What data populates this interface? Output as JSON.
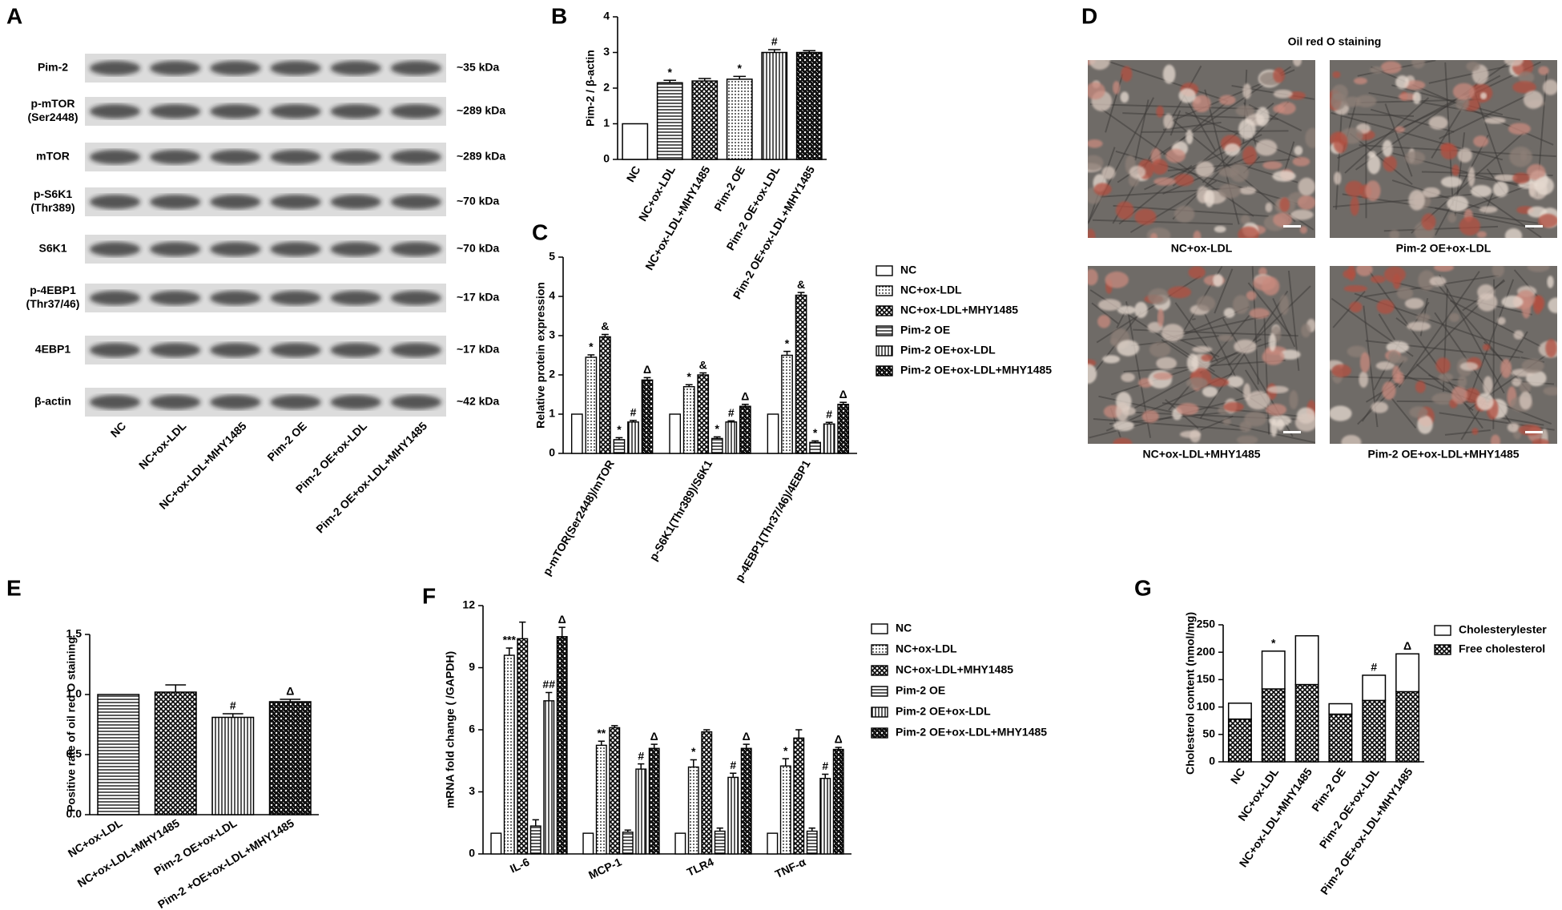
{
  "blot": {
    "label": "A",
    "rows": [
      {
        "name": [
          "Pim-2"
        ],
        "size": "~35 kDa"
      },
      {
        "name": [
          "p-mTOR",
          "(Ser2448)"
        ],
        "size": "~289 kDa"
      },
      {
        "name": [
          "mTOR"
        ],
        "size": "~289 kDa"
      },
      {
        "name": [
          "p-S6K1",
          "(Thr389)"
        ],
        "size": "~70 kDa"
      },
      {
        "name": [
          "S6K1"
        ],
        "size": "~70 kDa"
      },
      {
        "name": [
          "p-4EBP1",
          "(Thr37/46)"
        ],
        "size": "~17 kDa"
      },
      {
        "name": [
          "4EBP1"
        ],
        "size": "~17 kDa"
      },
      {
        "name": [
          "β-actin"
        ],
        "size": "~42 kDa"
      }
    ],
    "lanes": [
      "NC",
      "NC+ox-LDL",
      "NC+ox-LDL+MHY1485",
      "Pim-2 OE",
      "Pim-2 OE+ox-LDL",
      "Pim-2 OE+ox-LDL+MHY1485"
    ]
  },
  "micrographs": {
    "label": "D",
    "title": "Oil red O staining",
    "captions": [
      "NC+ox-LDL",
      "Pim-2 OE+ox-LDL",
      "NC+ox-LDL+MHY1485",
      "Pim-2 OE+ox-LDL+MHY1485"
    ]
  },
  "chart_data": [
    {
      "type": "bar",
      "label": "B",
      "y_label": "Pim-2 / β-actin",
      "categories": [
        "NC",
        "NC+ox-LDL",
        "NC+ox-LDL+MHY1485",
        "Pim-2 OE",
        "Pim-2 OE+ox-LDL",
        "Pim-2 OE+ox-LDL+MHY1485"
      ],
      "values": [
        1,
        2.15,
        2.2,
        2.25,
        3.0,
        3.0
      ],
      "errors": [
        null,
        0.07,
        0.07,
        0.08,
        0.08,
        0.05
      ],
      "annotations": [
        null,
        "*",
        null,
        "*",
        "#",
        null
      ],
      "patterns": [
        "white",
        "horizontal",
        "crosshatch",
        "dotted",
        "vertical",
        "checker"
      ],
      "ylim": [
        0,
        4
      ],
      "yticks": [
        0,
        1,
        2,
        3,
        4
      ]
    },
    {
      "type": "grouped_bar",
      "label": "C",
      "y_label": "Relative protein expression",
      "categories": [
        "p-mTOR(Ser2448)/mTOR",
        "p-S6K1(Thr389)/S6K1",
        "p-4EBP1(Thr37/46)/4EBP1"
      ],
      "series": [
        {
          "name": "NC",
          "pattern": "white",
          "values": [
            1,
            1,
            1
          ],
          "errors": [
            null,
            null,
            null
          ],
          "annotations": [
            null,
            null,
            null
          ]
        },
        {
          "name": "NC+ox-LDL",
          "pattern": "dotted",
          "values": [
            2.45,
            1.7,
            2.5
          ],
          "errors": [
            0.06,
            0.05,
            0.1
          ],
          "annotations": [
            "*",
            "*",
            "*"
          ]
        },
        {
          "name": "NC+ox-LDL+MHY1485",
          "pattern": "crosshatch",
          "values": [
            2.97,
            2.0,
            4.03
          ],
          "errors": [
            0.06,
            0.05,
            0.07
          ],
          "annotations": [
            "&",
            "&",
            "&"
          ]
        },
        {
          "name": "Pim-2 OE",
          "pattern": "horizontal",
          "values": [
            0.35,
            0.38,
            0.28
          ],
          "errors": [
            0.05,
            0.04,
            0.04
          ],
          "annotations": [
            "*",
            "*",
            "*"
          ]
        },
        {
          "name": "Pim-2 OE+ox-LDL",
          "pattern": "vertical",
          "values": [
            0.8,
            0.8,
            0.75
          ],
          "errors": [
            0.04,
            0.03,
            0.04
          ],
          "annotations": [
            "#",
            "#",
            "#"
          ]
        },
        {
          "name": "Pim-2 OE+ox-LDL+MHY1485",
          "pattern": "checker",
          "values": [
            1.87,
            1.2,
            1.25
          ],
          "errors": [
            0.06,
            0.05,
            0.05
          ],
          "annotations": [
            "Δ",
            "Δ",
            "Δ"
          ]
        }
      ],
      "ylim": [
        0,
        5
      ],
      "yticks": [
        0,
        1,
        2,
        3,
        4,
        5
      ]
    },
    {
      "type": "bar",
      "label": "E",
      "y_label": "Positive rate of oil red O staining",
      "categories": [
        "NC+ox-LDL",
        "NC+ox-LDL+MHY1485",
        "Pim-2 OE+ox-LDL",
        "Pim-2 +OE+ox-LDL+MHY1485"
      ],
      "values": [
        1.0,
        1.02,
        0.81,
        0.94
      ],
      "errors": [
        null,
        0.06,
        0.03,
        0.02
      ],
      "annotations": [
        null,
        null,
        "#",
        "Δ"
      ],
      "patterns": [
        "horizontal",
        "crosshatch",
        "vertical",
        "checker"
      ],
      "ylim": [
        0,
        1.5
      ],
      "yticks": [
        {
          "value": 0,
          "label": "0.0"
        },
        {
          "value": 0.5,
          "label": "0.5"
        },
        {
          "value": 1,
          "label": "1.0"
        },
        {
          "value": 1.5,
          "label": "1.5"
        }
      ]
    },
    {
      "type": "grouped_bar",
      "label": "F",
      "y_label": "mRNA fold change ( /GAPDH)",
      "categories": [
        "IL-6",
        "MCP-1",
        "TLR4",
        "TNF-α"
      ],
      "series": [
        {
          "name": "NC",
          "pattern": "white",
          "values": [
            1,
            1,
            1,
            1
          ],
          "errors": [
            null,
            null,
            null,
            null
          ],
          "annotations": [
            null,
            null,
            null,
            null
          ]
        },
        {
          "name": "NC+ox-LDL",
          "pattern": "dotted",
          "values": [
            9.6,
            5.25,
            4.2,
            4.25
          ],
          "errors": [
            0.35,
            0.2,
            0.35,
            0.35
          ],
          "annotations": [
            "***",
            "**",
            "*",
            "*"
          ]
        },
        {
          "name": "NC+ox-LDL+MHY1485",
          "pattern": "crosshatch",
          "values": [
            10.4,
            6.1,
            5.9,
            5.6
          ],
          "errors": [
            0.8,
            0.1,
            0.1,
            0.4
          ],
          "annotations": [
            null,
            null,
            null,
            null
          ]
        },
        {
          "name": "Pim-2 OE",
          "pattern": "horizontal",
          "values": [
            1.35,
            1.05,
            1.1,
            1.1
          ],
          "errors": [
            0.3,
            0.1,
            0.15,
            0.15
          ],
          "annotations": [
            null,
            null,
            null,
            null
          ]
        },
        {
          "name": "Pim-2 OE+ox-LDL",
          "pattern": "vertical",
          "values": [
            7.4,
            4.1,
            3.7,
            3.65
          ],
          "errors": [
            0.4,
            0.25,
            0.2,
            0.2
          ],
          "annotations": [
            "##",
            "#",
            "#",
            "#"
          ]
        },
        {
          "name": "Pim-2 OE+ox-LDL+MHY1485",
          "pattern": "checker",
          "values": [
            10.5,
            5.1,
            5.1,
            5.05
          ],
          "errors": [
            0.45,
            0.2,
            0.2,
            0.1
          ],
          "annotations": [
            "Δ",
            "Δ",
            "Δ",
            "Δ"
          ]
        }
      ],
      "ylim": [
        0,
        12
      ],
      "yticks": [
        0,
        3,
        6,
        9,
        12
      ]
    },
    {
      "type": "stacked_bar",
      "label": "G",
      "y_label": "Cholesterol content (nmol/mg)",
      "categories": [
        "NC",
        "NC+ox-LDL",
        "NC+ox-LDL+MHY1485",
        "Pim-2 OE",
        "Pim-2 OE+ox-LDL",
        "Pim-2 OE+ox-LDL+MHY1485"
      ],
      "series": [
        {
          "name": "Cholesterylester",
          "pattern": "white",
          "values": [
            29,
            69,
            89,
            19,
            46,
            69
          ]
        },
        {
          "name": "Free cholesterol",
          "pattern": "crosshatch",
          "values": [
            78,
            133,
            141,
            87,
            112,
            128
          ]
        }
      ],
      "stack_order": [
        1,
        0
      ],
      "annotations": [
        null,
        "*",
        null,
        null,
        "#",
        "Δ"
      ],
      "ylim": [
        0,
        250
      ],
      "yticks": [
        0,
        50,
        100,
        150,
        200,
        250
      ]
    }
  ]
}
